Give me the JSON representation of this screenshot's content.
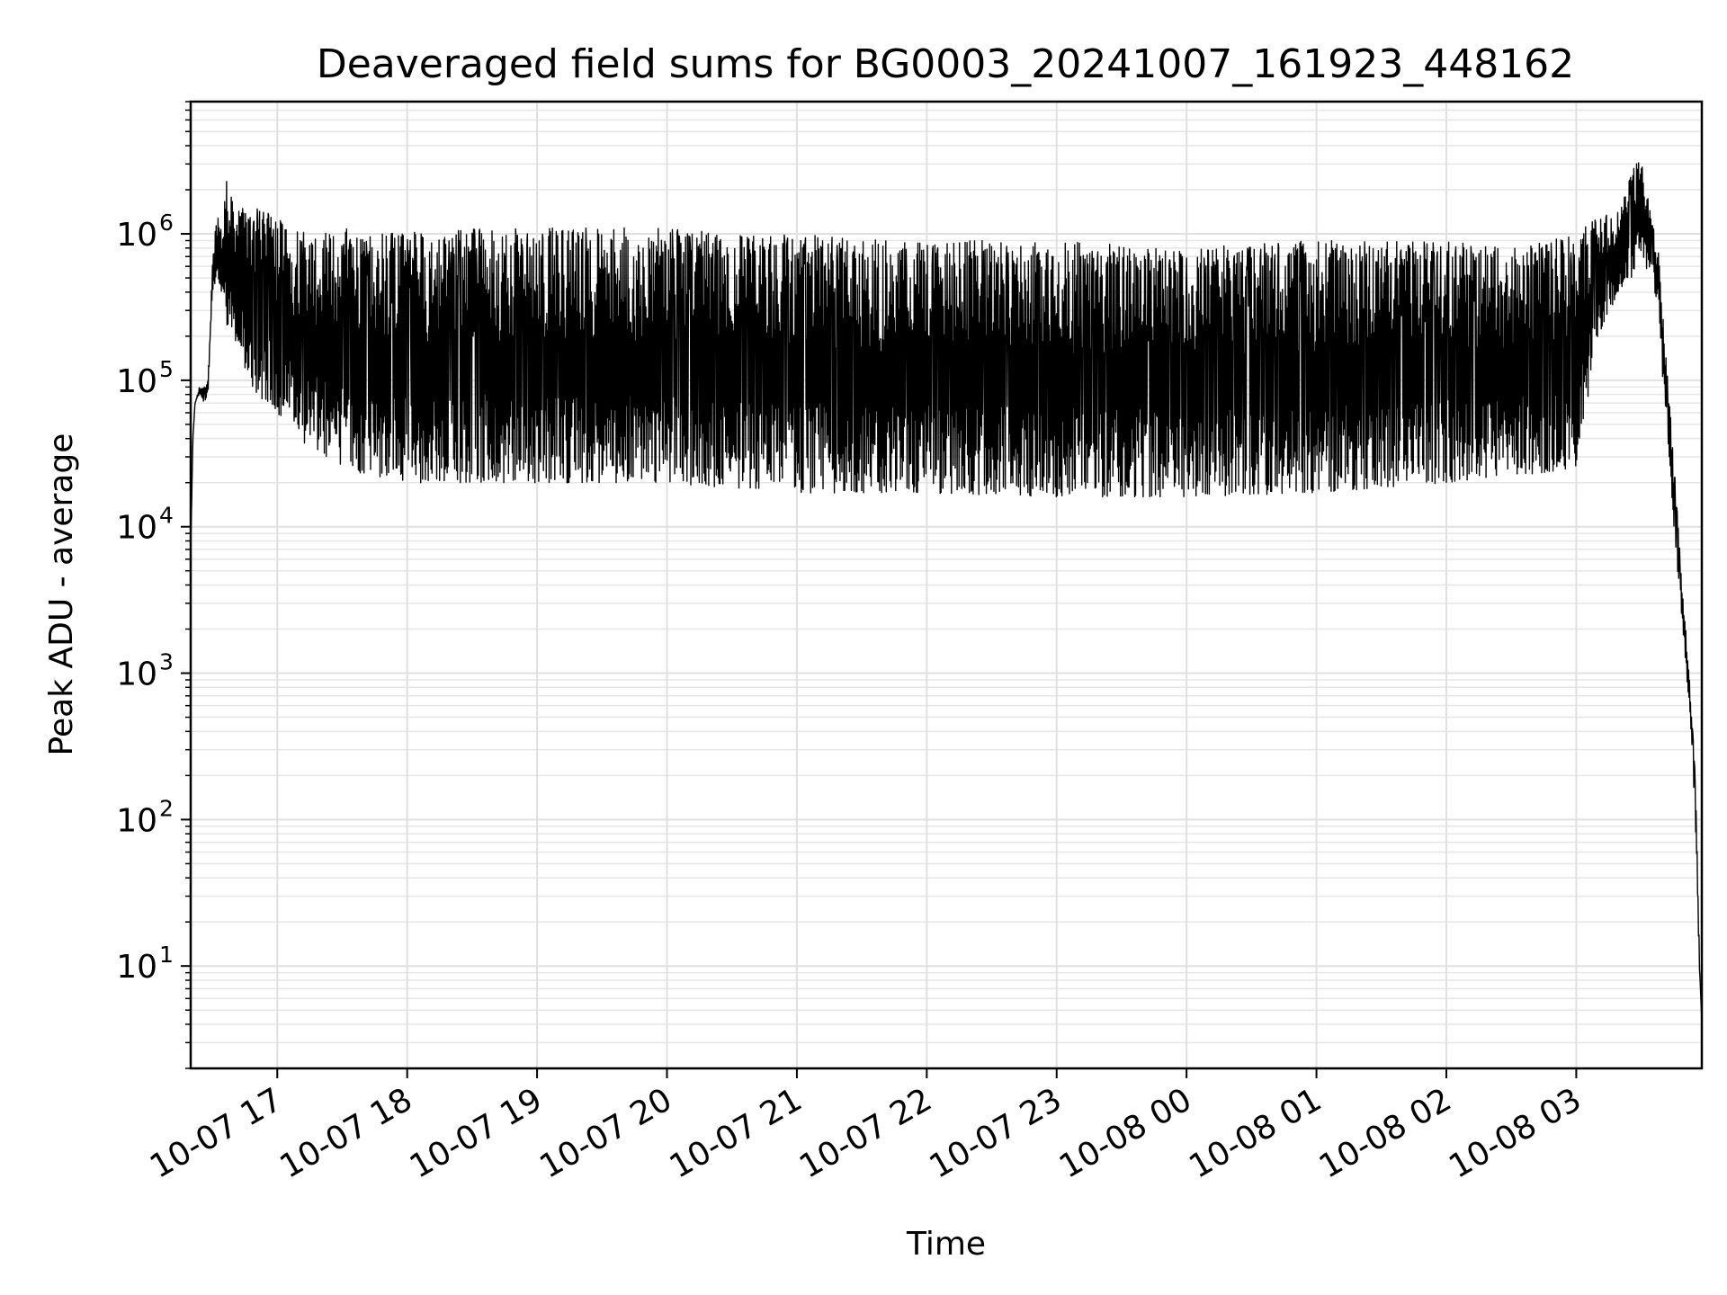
{
  "chart_data": {
    "type": "line",
    "title": "Deaveraged field sums for BG0003_20241007_161923_448162",
    "xlabel": "Time",
    "ylabel": "Peak ADU - average",
    "yscale": "log",
    "ylim": [
      2,
      8000000
    ],
    "xlim": [
      "2024-10-07 16:20",
      "2024-10-08 03:58"
    ],
    "grid": true,
    "grid_minor": true,
    "line_color": "#000000",
    "y_ticks": [
      {
        "base": "10",
        "exp": "1",
        "value": 10
      },
      {
        "base": "10",
        "exp": "2",
        "value": 100
      },
      {
        "base": "10",
        "exp": "3",
        "value": 1000
      },
      {
        "base": "10",
        "exp": "4",
        "value": 10000
      },
      {
        "base": "10",
        "exp": "5",
        "value": 100000
      },
      {
        "base": "10",
        "exp": "6",
        "value": 1000000
      }
    ],
    "x_ticks": [
      {
        "label": "10-07 17",
        "t": "2024-10-07 17:00"
      },
      {
        "label": "10-07 18",
        "t": "2024-10-07 18:00"
      },
      {
        "label": "10-07 19",
        "t": "2024-10-07 19:00"
      },
      {
        "label": "10-07 20",
        "t": "2024-10-07 20:00"
      },
      {
        "label": "10-07 21",
        "t": "2024-10-07 21:00"
      },
      {
        "label": "10-07 22",
        "t": "2024-10-07 22:00"
      },
      {
        "label": "10-07 23",
        "t": "2024-10-07 23:00"
      },
      {
        "label": "10-08 00",
        "t": "2024-10-08 00:00"
      },
      {
        "label": "10-08 01",
        "t": "2024-10-08 01:00"
      },
      {
        "label": "10-08 02",
        "t": "2024-10-08 02:00"
      },
      {
        "label": "10-08 03",
        "t": "2024-10-08 03:00"
      }
    ],
    "series": [
      {
        "x": [
          "2024-10-07 16:20",
          "2024-10-07 16:21",
          "2024-10-07 16:22",
          "2024-10-07 16:24",
          "2024-10-07 16:26",
          "2024-10-07 16:28",
          "2024-10-07 16:30",
          "2024-10-07 16:32",
          "2024-10-07 16:33",
          "2024-10-07 16:35",
          "2024-10-07 16:36",
          "2024-10-07 16:40",
          "2024-10-07 16:45",
          "2024-10-07 16:50",
          "2024-10-07 16:55",
          "2024-10-07 17:00",
          "2024-10-07 17:10",
          "2024-10-07 17:20",
          "2024-10-07 17:30",
          "2024-10-07 17:45",
          "2024-10-07 18:00",
          "2024-10-07 18:30",
          "2024-10-07 19:00",
          "2024-10-07 19:30",
          "2024-10-07 20:00",
          "2024-10-07 20:30",
          "2024-10-07 21:00",
          "2024-10-07 22:00",
          "2024-10-07 23:00",
          "2024-10-08 00:00",
          "2024-10-08 01:00",
          "2024-10-08 02:00",
          "2024-10-08 02:30",
          "2024-10-08 03:00",
          "2024-10-08 03:10",
          "2024-10-08 03:20",
          "2024-10-08 03:30",
          "2024-10-08 03:35",
          "2024-10-08 03:38",
          "2024-10-08 03:40",
          "2024-10-08 03:45",
          "2024-10-08 03:50",
          "2024-10-08 03:53",
          "2024-10-08 03:55",
          "2024-10-08 03:56",
          "2024-10-08 03:57",
          "2024-10-08 03:58"
        ],
        "high": [
          7000,
          40000,
          70000,
          90000,
          90000,
          100000,
          600000,
          1800000,
          1200000,
          1000000,
          2700000,
          1500000,
          1500000,
          1500000,
          1400000,
          1300000,
          1100000,
          1000000,
          1100000,
          1050000,
          1050000,
          1100000,
          1100000,
          1100000,
          1100000,
          1000000,
          1000000,
          900000,
          900000,
          800000,
          900000,
          900000,
          800000,
          1000000,
          1300000,
          1500000,
          4000000,
          1200000,
          800000,
          300000,
          30000,
          2500,
          700,
          200,
          50,
          10,
          4
        ],
        "low": [
          7000,
          40000,
          70000,
          80000,
          70000,
          80000,
          400000,
          500000,
          400000,
          400000,
          250000,
          200000,
          120000,
          80000,
          70000,
          60000,
          40000,
          30000,
          25000,
          22000,
          20000,
          20000,
          20000,
          20000,
          20000,
          18000,
          17000,
          17000,
          16000,
          16000,
          17000,
          20000,
          22000,
          25000,
          200000,
          400000,
          600000,
          500000,
          300000,
          100000,
          10000,
          1500,
          400,
          100,
          30,
          8,
          4
        ]
      }
    ]
  }
}
